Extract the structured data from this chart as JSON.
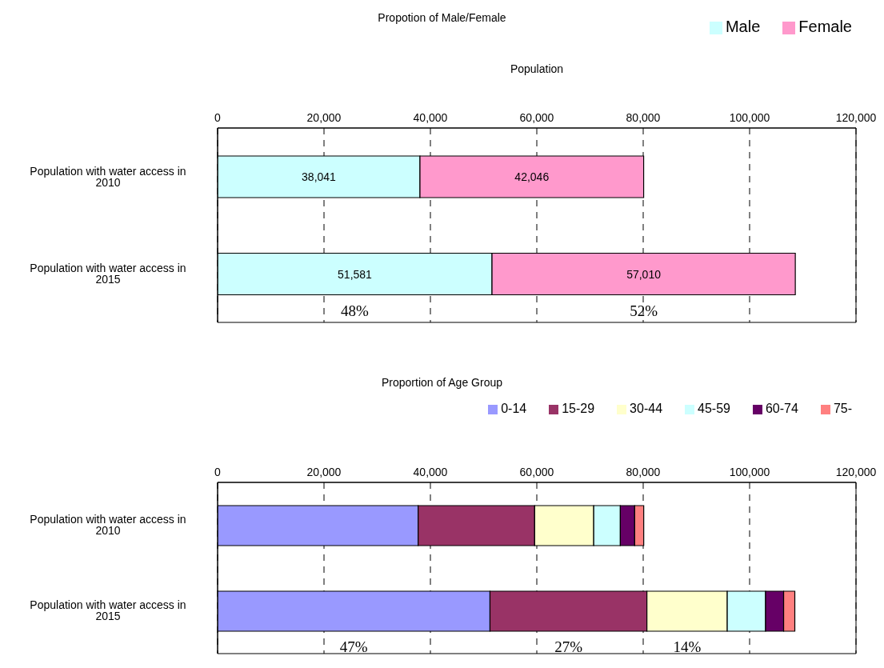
{
  "chart_data": [
    {
      "type": "bar",
      "orientation": "horizontal",
      "stacked": true,
      "title": "Propotion of Male/Female",
      "xlabel": "Population",
      "categories": [
        "Population with water access in 2010",
        "Population with water access in 2015"
      ],
      "series": [
        {
          "name": "Male",
          "color": "#ccffff",
          "values": [
            38041,
            51581
          ],
          "value_labels": [
            "38,041",
            "51,581"
          ]
        },
        {
          "name": "Female",
          "color": "#ff99cc",
          "values": [
            42046,
            57010
          ],
          "value_labels": [
            "42,046",
            "57,010"
          ]
        }
      ],
      "xlim": [
        0,
        120000
      ],
      "xticks": [
        0,
        {
          "value": 20000,
          "label": "20,000"
        },
        {
          "value": 40000,
          "label": "40,000"
        },
        {
          "value": 60000,
          "label": "60,000"
        },
        {
          "value": 80000,
          "label": "80,000"
        },
        {
          "value": 100000,
          "label": "100,000"
        },
        {
          "value": 120000,
          "label": "120,000"
        }
      ],
      "grid": "x",
      "legend": "top right",
      "annotations": [
        "48%",
        "52%"
      ]
    },
    {
      "type": "bar",
      "orientation": "horizontal",
      "stacked": true,
      "title": "Proportion of Age Group",
      "categories": [
        "Population with water access in 2010",
        "Population with water access in 2015"
      ],
      "series": [
        {
          "name": "0-14",
          "color": "#9999ff",
          "values": [
            37700,
            51200
          ]
        },
        {
          "name": "15-29",
          "color": "#993366",
          "values": [
            21900,
            29500
          ]
        },
        {
          "name": "30-44",
          "color": "#ffffcc",
          "values": [
            11100,
            15100
          ]
        },
        {
          "name": "45-59",
          "color": "#ccffff",
          "values": [
            5000,
            7200
          ]
        },
        {
          "name": "60-74",
          "color": "#660066",
          "values": [
            2700,
            3400
          ]
        },
        {
          "name": "75-",
          "color": "#ff8080",
          "values": [
            1700,
            2100
          ]
        }
      ],
      "xlim": [
        0,
        120000
      ],
      "xticks": [
        0,
        {
          "value": 20000,
          "label": "20,000"
        },
        {
          "value": 40000,
          "label": "40,000"
        },
        {
          "value": 60000,
          "label": "60,000"
        },
        {
          "value": 80000,
          "label": "80,000"
        },
        {
          "value": 100000,
          "label": "100,000"
        },
        {
          "value": 120000,
          "label": "120,000"
        }
      ],
      "grid": "x",
      "legend": "top right",
      "annotations": [
        "47%",
        "27%",
        "14%"
      ]
    }
  ]
}
